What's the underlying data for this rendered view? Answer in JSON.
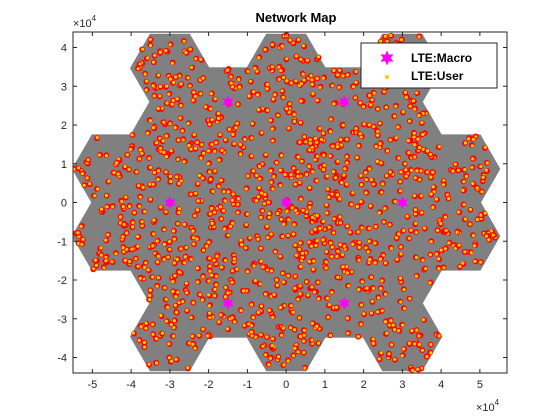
{
  "chart_data": {
    "type": "scatter",
    "title": "Network Map",
    "xlabel": "",
    "ylabel": "",
    "x_multiplier_label": "×10",
    "x_multiplier_exp": "4",
    "y_multiplier_label": "×10",
    "y_multiplier_exp": "4",
    "xlim": [
      -55000,
      57000
    ],
    "ylim": [
      -44000,
      44000
    ],
    "xticks": [
      -5,
      -4,
      -3,
      -2,
      -1,
      0,
      1,
      2,
      3,
      4,
      5
    ],
    "yticks": [
      -4,
      -3,
      -2,
      -1,
      0,
      1,
      2,
      3,
      4
    ],
    "grid": false,
    "legend_position": "top-right",
    "colors": {
      "hex_fill": "#808080",
      "macro": "#ff00ff",
      "user_outer": "#ff0000",
      "user_inner": "#ffcc00"
    },
    "hex_circumradius": 10000,
    "cell_centers": [
      [
        0,
        0
      ],
      [
        15000,
        8660
      ],
      [
        15000,
        -8660
      ],
      [
        0,
        17320
      ],
      [
        0,
        -17320
      ],
      [
        -15000,
        8660
      ],
      [
        -15000,
        -8660
      ],
      [
        30000,
        0
      ],
      [
        -30000,
        0
      ],
      [
        15000,
        25980
      ],
      [
        15000,
        -25980
      ],
      [
        -15000,
        25980
      ],
      [
        -15000,
        -25980
      ],
      [
        0,
        34640
      ],
      [
        0,
        -34640
      ],
      [
        30000,
        17320
      ],
      [
        30000,
        -17320
      ],
      [
        -30000,
        17320
      ],
      [
        -30000,
        -17320
      ],
      [
        45000,
        8660
      ],
      [
        45000,
        -8660
      ],
      [
        -45000,
        8660
      ],
      [
        -45000,
        -8660
      ],
      [
        30000,
        34640
      ],
      [
        30000,
        -34640
      ],
      [
        -30000,
        34640
      ],
      [
        -30000,
        -34640
      ]
    ],
    "series": [
      {
        "name": "LTE:Macro",
        "marker": "hexagram",
        "color": "#ff00ff",
        "points": [
          [
            0,
            0
          ],
          [
            -15000,
            26000
          ],
          [
            15000,
            26000
          ],
          [
            -30000,
            0
          ],
          [
            30000,
            0
          ],
          [
            -15000,
            -26000
          ],
          [
            15000,
            -26000
          ]
        ]
      },
      {
        "name": "LTE:User",
        "marker": "dot",
        "color": "#ffcc00",
        "count": 1200
      }
    ]
  }
}
